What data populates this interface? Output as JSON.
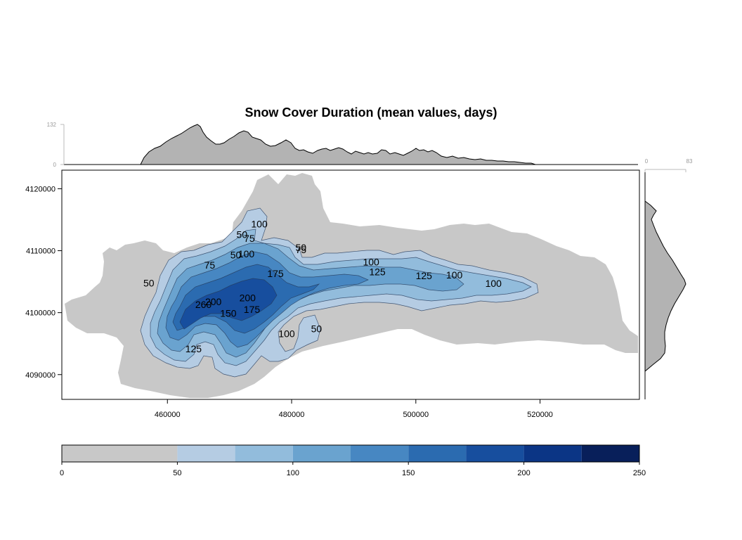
{
  "title": "Snow Cover Duration (mean values, days)",
  "top_hist": {
    "min_label": "0",
    "max_label": "132",
    "fill_color": "#b3b3b3"
  },
  "right_hist": {
    "min_label": "0",
    "max_label": "83",
    "fill_color": "#b3b3b3"
  },
  "chart_data": {
    "type": "heatmap",
    "title": "Snow Cover Duration (mean values, days)",
    "xlabel": "",
    "ylabel": "",
    "xlim": [
      443000,
      536000
    ],
    "ylim": [
      4086000,
      4123000
    ],
    "x_ticks": [
      "460000",
      "480000",
      "500000",
      "520000"
    ],
    "y_ticks": [
      "4120000",
      "4110000",
      "4100000",
      "4090000"
    ],
    "x_tick_values": [
      460000,
      480000,
      500000,
      520000
    ],
    "y_tick_values": [
      4120000,
      4110000,
      4100000,
      4090000
    ],
    "colorbar": {
      "breaks": [
        0,
        50,
        75,
        100,
        125,
        150,
        175,
        200,
        225,
        250
      ],
      "tick_labels": [
        "0",
        "50",
        "100",
        "150",
        "200",
        "250"
      ],
      "tick_values": [
        0,
        50,
        100,
        150,
        200,
        250
      ],
      "colors": [
        "#c8c8c8",
        "#b5cce3",
        "#92bcdc",
        "#6aa3cf",
        "#4787c2",
        "#2b6bb0",
        "#174e9e",
        "#0b3585",
        "#081f5a"
      ]
    },
    "contour_labels": [
      {
        "text": "100",
        "x": 474800,
        "y": 4114300
      },
      {
        "text": "50",
        "x": 472000,
        "y": 4112600
      },
      {
        "text": "75",
        "x": 473200,
        "y": 4112000
      },
      {
        "text": "50",
        "x": 471000,
        "y": 4109300
      },
      {
        "text": "100",
        "x": 472700,
        "y": 4109500
      },
      {
        "text": "50",
        "x": 481500,
        "y": 4110500
      },
      {
        "text": "75",
        "x": 481500,
        "y": 4110200
      },
      {
        "text": "75",
        "x": 466800,
        "y": 4107700
      },
      {
        "text": "175",
        "x": 477400,
        "y": 4106300
      },
      {
        "text": "100",
        "x": 492800,
        "y": 4108200
      },
      {
        "text": "125",
        "x": 493800,
        "y": 4106600
      },
      {
        "text": "50",
        "x": 457000,
        "y": 4104800
      },
      {
        "text": "125",
        "x": 501300,
        "y": 4106000
      },
      {
        "text": "100",
        "x": 506200,
        "y": 4106100
      },
      {
        "text": "100",
        "x": 512500,
        "y": 4104700
      },
      {
        "text": "200",
        "x": 467400,
        "y": 4101800
      },
      {
        "text": "260",
        "x": 465800,
        "y": 4101300
      },
      {
        "text": "200",
        "x": 472900,
        "y": 4102400
      },
      {
        "text": "150",
        "x": 469800,
        "y": 4099900
      },
      {
        "text": "175",
        "x": 473600,
        "y": 4100500
      },
      {
        "text": "50",
        "x": 484000,
        "y": 4097400
      },
      {
        "text": "100",
        "x": 479200,
        "y": 4096600
      },
      {
        "text": "125",
        "x": 464200,
        "y": 4094200
      }
    ]
  }
}
